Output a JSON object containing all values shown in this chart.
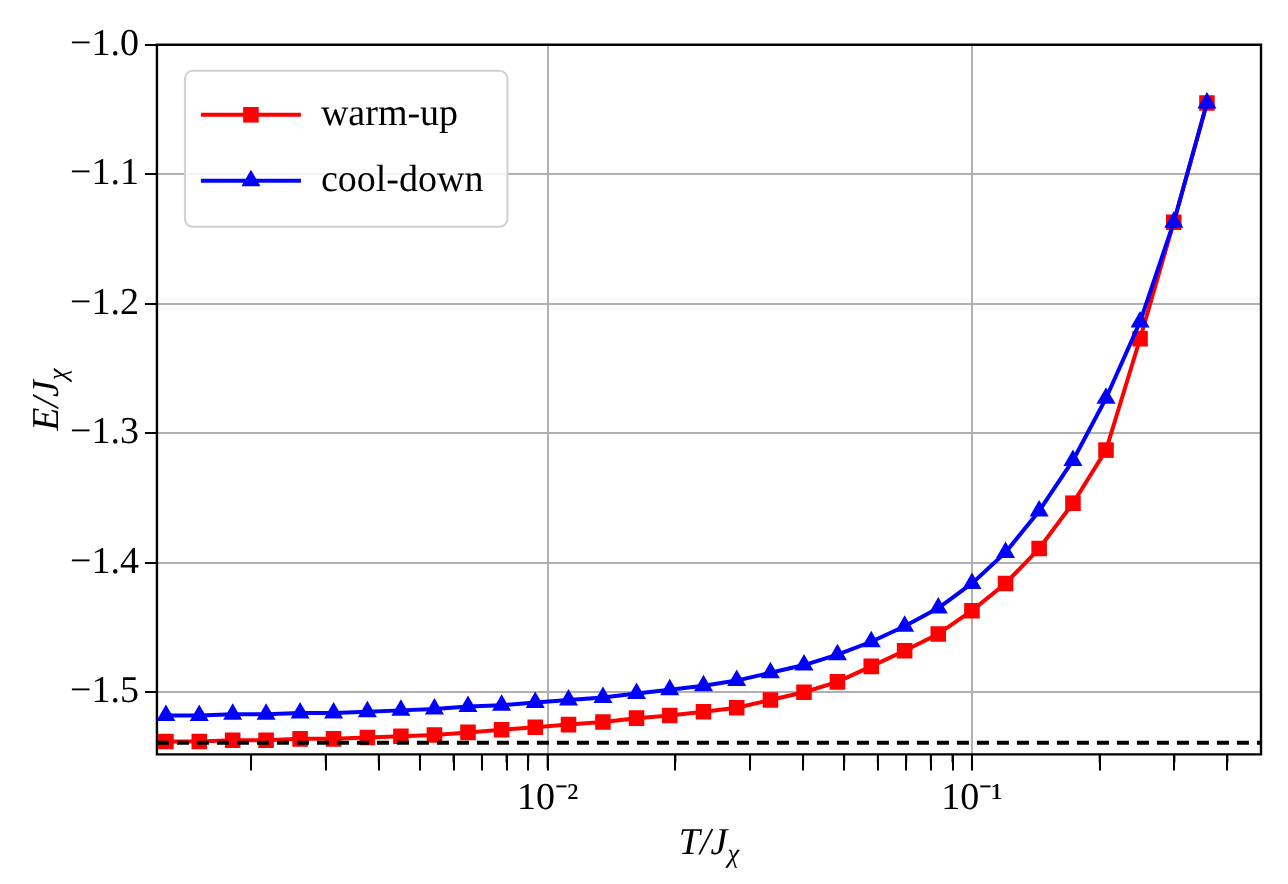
{
  "chart_data": {
    "type": "line",
    "xlabel": "T/J$_{χ}$",
    "ylabel": "E/J$_{χ}$",
    "log": "x",
    "grid": true,
    "legend": "top left",
    "line_style": "solid",
    "xlim": [
      0.0012,
      0.48
    ],
    "xticks": [
      {
        "value": 0.002,
        "label": null
      },
      {
        "value": 0.003,
        "label": null
      },
      {
        "value": 0.004,
        "label": null
      },
      {
        "value": 0.005,
        "label": null
      },
      {
        "value": 0.006,
        "label": null
      },
      {
        "value": 0.007,
        "label": null
      },
      {
        "value": 0.008,
        "label": null
      },
      {
        "value": 0.009,
        "label": null
      },
      {
        "value": 0.01,
        "label": "10⁻²"
      },
      {
        "value": 0.02,
        "label": null
      },
      {
        "value": 0.03,
        "label": null
      },
      {
        "value": 0.04,
        "label": null
      },
      {
        "value": 0.05,
        "label": null
      },
      {
        "value": 0.06,
        "label": null
      },
      {
        "value": 0.07,
        "label": null
      },
      {
        "value": 0.08,
        "label": null
      },
      {
        "value": 0.09,
        "label": null
      },
      {
        "value": 0.1,
        "label": "10⁻¹"
      },
      {
        "value": 0.2,
        "label": null
      },
      {
        "value": 0.3,
        "label": null
      },
      {
        "value": 0.4,
        "label": null
      }
    ],
    "ylim": [
      -1.548,
      -1.0
    ],
    "yticks": [
      {
        "value": -1.5,
        "label": "−1.5"
      },
      {
        "value": -1.4,
        "label": "−1.4"
      },
      {
        "value": -1.3,
        "label": "−1.3"
      },
      {
        "value": -1.2,
        "label": "−1.2"
      },
      {
        "value": -1.1,
        "label": "−1.1"
      },
      {
        "value": -1.0,
        "label": "−1.0"
      }
    ],
    "x": [
      0.00126,
      0.00151,
      0.00181,
      0.00217,
      0.00261,
      0.00313,
      0.00376,
      0.00451,
      0.00541,
      0.00649,
      0.00779,
      0.00935,
      0.0112,
      0.0135,
      0.0162,
      0.0194,
      0.0233,
      0.0279,
      0.0335,
      0.0402,
      0.0482,
      0.0579,
      0.0694,
      0.0833,
      0.1,
      0.12,
      0.144,
      0.173,
      0.207,
      0.249,
      0.299,
      0.358
    ],
    "series": [
      {
        "name": "warm-up",
        "color": "#ff0000",
        "marker": "square",
        "values": [
          -1.538,
          -1.538,
          -1.537,
          -1.537,
          -1.536,
          -1.536,
          -1.535,
          -1.534,
          -1.533,
          -1.531,
          -1.529,
          -1.527,
          -1.525,
          -1.523,
          -1.52,
          -1.518,
          -1.515,
          -1.512,
          -1.506,
          -1.5,
          -1.492,
          -1.48,
          -1.468,
          -1.455,
          -1.437,
          -1.416,
          -1.389,
          -1.354,
          -1.313,
          -1.227,
          -1.137,
          -1.045
        ]
      },
      {
        "name": "cool-down",
        "color": "#0000ff",
        "marker": "triangle",
        "values": [
          -1.518,
          -1.518,
          -1.517,
          -1.517,
          -1.516,
          -1.516,
          -1.515,
          -1.514,
          -1.513,
          -1.511,
          -1.51,
          -1.508,
          -1.506,
          -1.504,
          -1.501,
          -1.498,
          -1.495,
          -1.491,
          -1.485,
          -1.479,
          -1.471,
          -1.461,
          -1.449,
          -1.435,
          -1.416,
          -1.392,
          -1.36,
          -1.321,
          -1.273,
          -1.214,
          -1.137,
          -1.045
        ]
      }
    ],
    "ref_lines": [
      {
        "axis": "y",
        "value": -1.539,
        "color": "#000000",
        "line_style": "dashed"
      }
    ]
  }
}
